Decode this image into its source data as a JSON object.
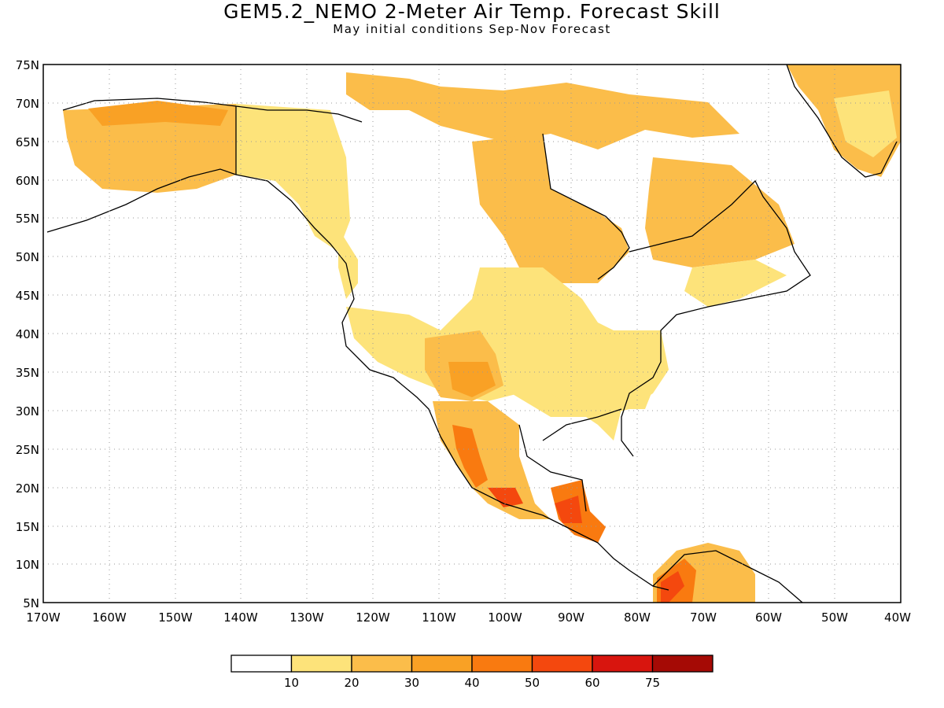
{
  "title": "GEM5.2_NEMO 2-Meter Air Temp. Forecast Skill",
  "subtitle": "May initial conditions  Sep-Nov Forecast",
  "map": {
    "lon_range": [
      -170,
      -40
    ],
    "lat_range": [
      5,
      75
    ],
    "lat_ticks": [
      "75N",
      "70N",
      "65N",
      "60N",
      "55N",
      "50N",
      "45N",
      "40N",
      "35N",
      "30N",
      "25N",
      "20N",
      "15N",
      "10N",
      "5N"
    ],
    "lon_ticks": [
      "170W",
      "160W",
      "150W",
      "140W",
      "130W",
      "120W",
      "110W",
      "100W",
      "90W",
      "80W",
      "70W",
      "60W",
      "50W",
      "40W"
    ],
    "gridlines": "dotted",
    "ocean_color": "#ffffff"
  },
  "legend": {
    "labels": [
      "10",
      "20",
      "30",
      "40",
      "50",
      "60",
      "75"
    ],
    "colors": [
      "#ffffff",
      "#fde37a",
      "#fbbd4a",
      "#f9a125",
      "#f97a10",
      "#f4480e",
      "#d8150e",
      "#a50a05"
    ]
  },
  "skill_levels": {
    "alaska_interior": "20-30",
    "alaska_north_slope": "30-40",
    "yukon": "10-20",
    "hudson_bay_region": "20-30",
    "quebec_labrador": "20-30",
    "greenland_south": "20-30",
    "us_southwest": "20-30",
    "us_southeast": "10-20",
    "mexico_west_coast": "40-60",
    "guatemala": "50-60",
    "colombia_venezuela": "40-60"
  }
}
